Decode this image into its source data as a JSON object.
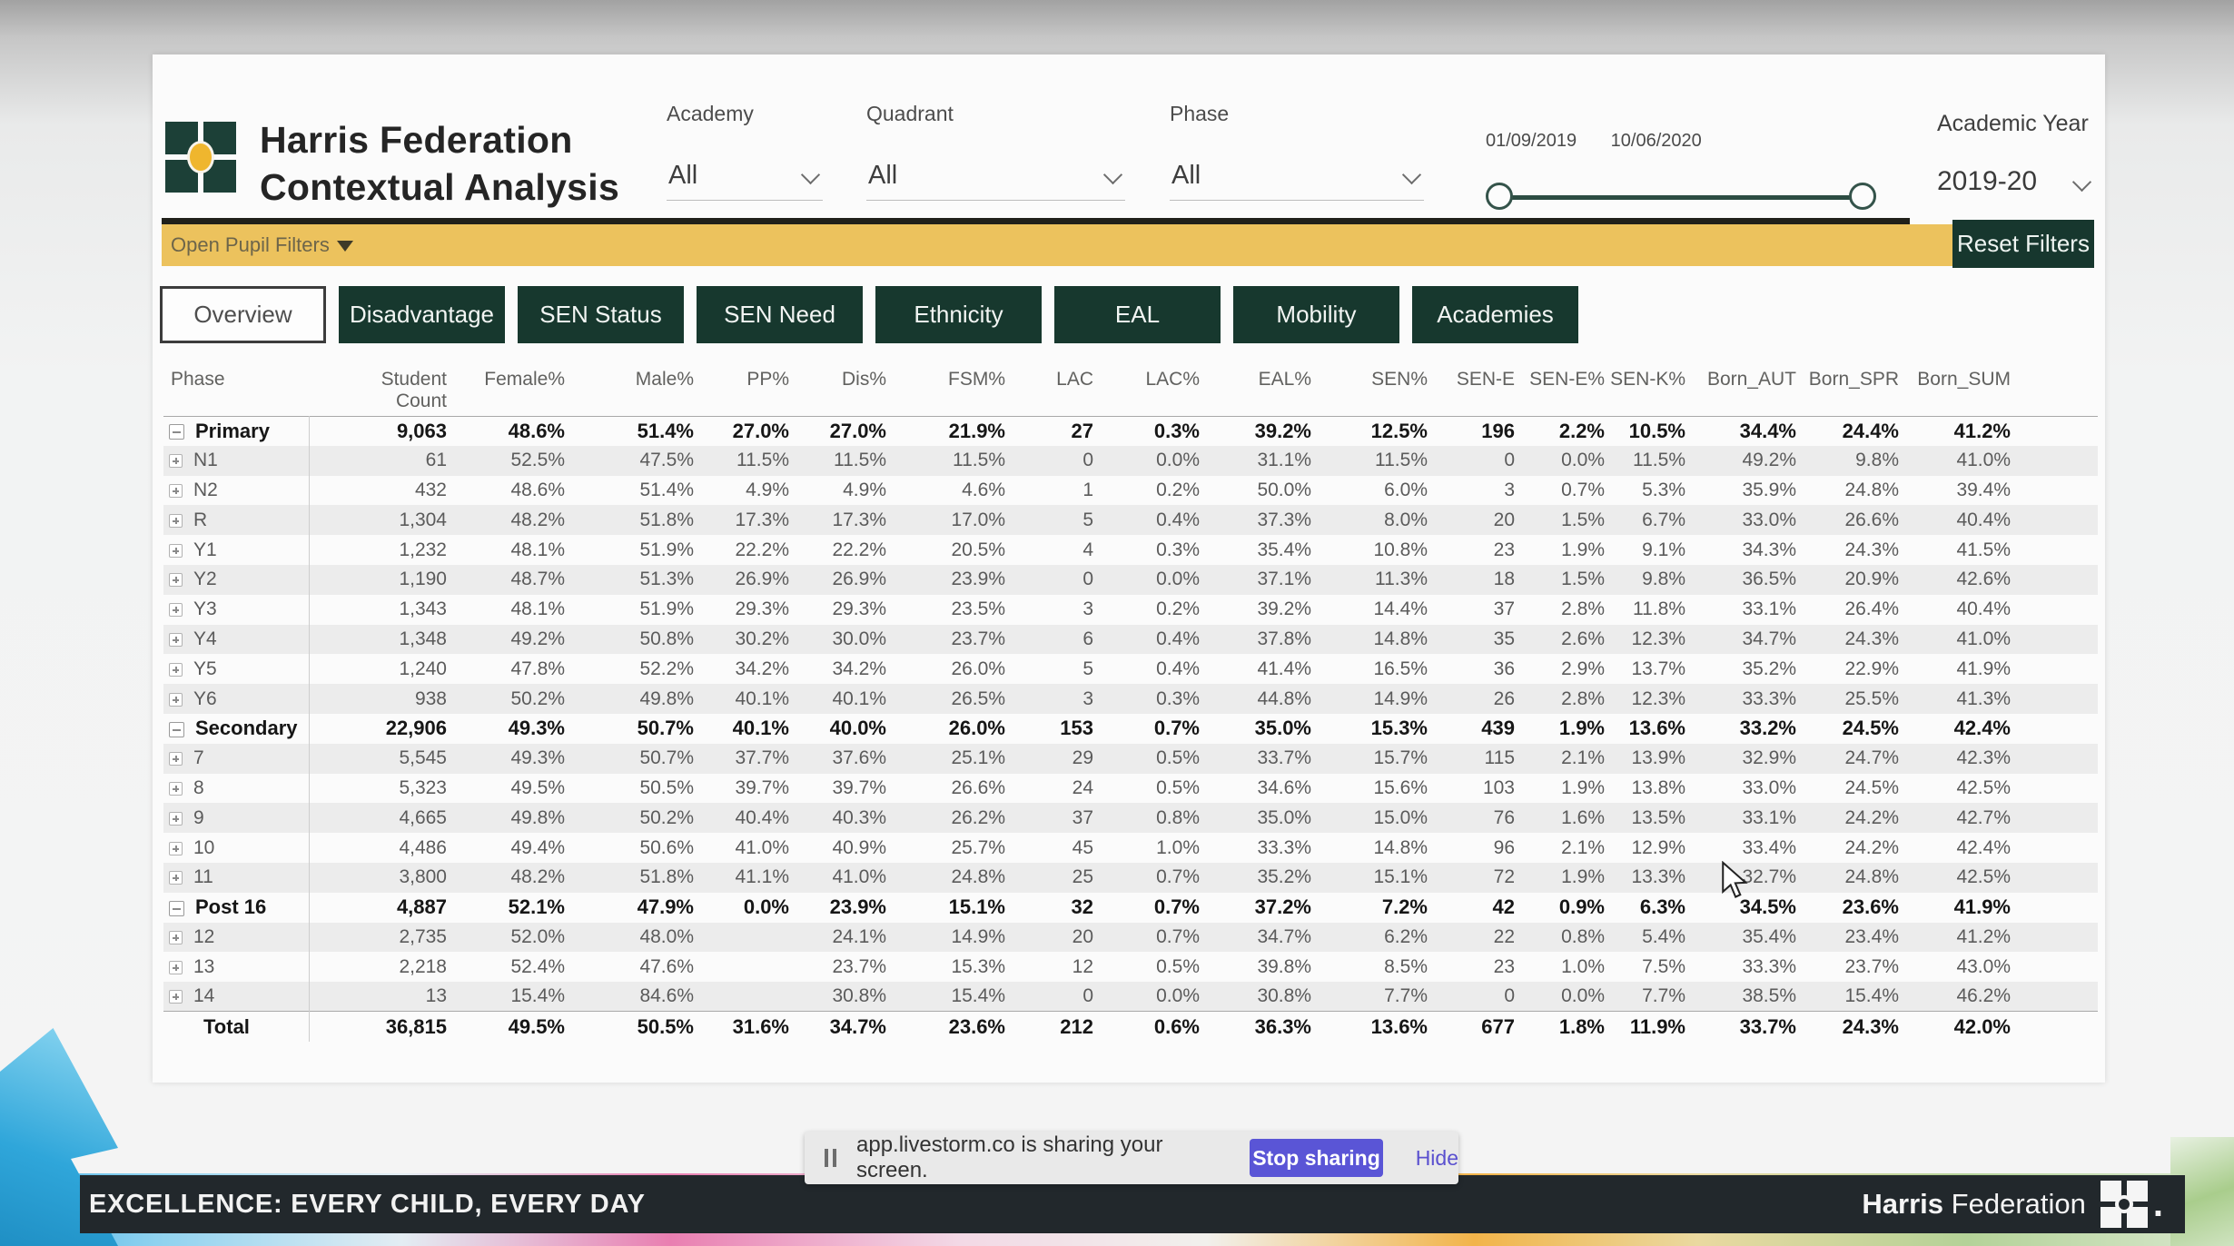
{
  "header": {
    "title_line1": "Harris Federation",
    "title_line2": "Contextual Analysis",
    "filters": [
      {
        "label": "Academy",
        "value": "All"
      },
      {
        "label": "Quadrant",
        "value": "All"
      },
      {
        "label": "Phase",
        "value": "All"
      }
    ],
    "date_slider": {
      "start_date": "01/09/2019",
      "end_date": "10/06/2020"
    },
    "academic_year": {
      "label": "Academic Year",
      "value": "2019-20"
    }
  },
  "filter_bar": {
    "open_pupil_filters_label": "Open Pupil Filters",
    "reset_filters_label": "Reset Filters"
  },
  "tabs": [
    {
      "label": "Overview",
      "active": true
    },
    {
      "label": "Disadvantage",
      "active": false
    },
    {
      "label": "SEN Status",
      "active": false
    },
    {
      "label": "SEN Need",
      "active": false
    },
    {
      "label": "Ethnicity",
      "active": false
    },
    {
      "label": "EAL",
      "active": false
    },
    {
      "label": "Mobility",
      "active": false
    },
    {
      "label": "Academies",
      "active": false
    }
  ],
  "table": {
    "columns": [
      "Phase",
      "Student Count",
      "Female%",
      "Male%",
      "PP%",
      "Dis%",
      "FSM%",
      "LAC",
      "LAC%",
      "EAL%",
      "SEN%",
      "SEN-E",
      "SEN-E%",
      "SEN-K%",
      "Born_AUT",
      "Born_SPR",
      "Born_SUM"
    ],
    "rows": [
      {
        "phase": "Primary",
        "icon": "minus",
        "bold": true,
        "values": [
          "9,063",
          "48.6%",
          "51.4%",
          "27.0%",
          "27.0%",
          "21.9%",
          "27",
          "0.3%",
          "39.2%",
          "12.5%",
          "196",
          "2.2%",
          "10.5%",
          "34.4%",
          "24.4%",
          "41.2%"
        ]
      },
      {
        "phase": "N1",
        "icon": "plus",
        "bold": false,
        "values": [
          "61",
          "52.5%",
          "47.5%",
          "11.5%",
          "11.5%",
          "11.5%",
          "0",
          "0.0%",
          "31.1%",
          "11.5%",
          "0",
          "0.0%",
          "11.5%",
          "49.2%",
          "9.8%",
          "41.0%"
        ]
      },
      {
        "phase": "N2",
        "icon": "plus",
        "bold": false,
        "values": [
          "432",
          "48.6%",
          "51.4%",
          "4.9%",
          "4.9%",
          "4.6%",
          "1",
          "0.2%",
          "50.0%",
          "6.0%",
          "3",
          "0.7%",
          "5.3%",
          "35.9%",
          "24.8%",
          "39.4%"
        ]
      },
      {
        "phase": "R",
        "icon": "plus",
        "bold": false,
        "values": [
          "1,304",
          "48.2%",
          "51.8%",
          "17.3%",
          "17.3%",
          "17.0%",
          "5",
          "0.4%",
          "37.3%",
          "8.0%",
          "20",
          "1.5%",
          "6.7%",
          "33.0%",
          "26.6%",
          "40.4%"
        ]
      },
      {
        "phase": "Y1",
        "icon": "plus",
        "bold": false,
        "values": [
          "1,232",
          "48.1%",
          "51.9%",
          "22.2%",
          "22.2%",
          "20.5%",
          "4",
          "0.3%",
          "35.4%",
          "10.8%",
          "23",
          "1.9%",
          "9.1%",
          "34.3%",
          "24.3%",
          "41.5%"
        ]
      },
      {
        "phase": "Y2",
        "icon": "plus",
        "bold": false,
        "values": [
          "1,190",
          "48.7%",
          "51.3%",
          "26.9%",
          "26.9%",
          "23.9%",
          "0",
          "0.0%",
          "37.1%",
          "11.3%",
          "18",
          "1.5%",
          "9.8%",
          "36.5%",
          "20.9%",
          "42.6%"
        ]
      },
      {
        "phase": "Y3",
        "icon": "plus",
        "bold": false,
        "values": [
          "1,343",
          "48.1%",
          "51.9%",
          "29.3%",
          "29.3%",
          "23.5%",
          "3",
          "0.2%",
          "39.2%",
          "14.4%",
          "37",
          "2.8%",
          "11.8%",
          "33.1%",
          "26.4%",
          "40.4%"
        ]
      },
      {
        "phase": "Y4",
        "icon": "plus",
        "bold": false,
        "values": [
          "1,348",
          "49.2%",
          "50.8%",
          "30.2%",
          "30.0%",
          "23.7%",
          "6",
          "0.4%",
          "37.8%",
          "14.8%",
          "35",
          "2.6%",
          "12.3%",
          "34.7%",
          "24.3%",
          "41.0%"
        ]
      },
      {
        "phase": "Y5",
        "icon": "plus",
        "bold": false,
        "values": [
          "1,240",
          "47.8%",
          "52.2%",
          "34.2%",
          "34.2%",
          "26.0%",
          "5",
          "0.4%",
          "41.4%",
          "16.5%",
          "36",
          "2.9%",
          "13.7%",
          "35.2%",
          "22.9%",
          "41.9%"
        ]
      },
      {
        "phase": "Y6",
        "icon": "plus",
        "bold": false,
        "values": [
          "938",
          "50.2%",
          "49.8%",
          "40.1%",
          "40.1%",
          "26.5%",
          "3",
          "0.3%",
          "44.8%",
          "14.9%",
          "26",
          "2.8%",
          "12.3%",
          "33.3%",
          "25.5%",
          "41.3%"
        ]
      },
      {
        "phase": "Secondary",
        "icon": "minus",
        "bold": true,
        "values": [
          "22,906",
          "49.3%",
          "50.7%",
          "40.1%",
          "40.0%",
          "26.0%",
          "153",
          "0.7%",
          "35.0%",
          "15.3%",
          "439",
          "1.9%",
          "13.6%",
          "33.2%",
          "24.5%",
          "42.4%"
        ]
      },
      {
        "phase": "7",
        "icon": "plus",
        "bold": false,
        "values": [
          "5,545",
          "49.3%",
          "50.7%",
          "37.7%",
          "37.6%",
          "25.1%",
          "29",
          "0.5%",
          "33.7%",
          "15.7%",
          "115",
          "2.1%",
          "13.9%",
          "32.9%",
          "24.7%",
          "42.3%"
        ]
      },
      {
        "phase": "8",
        "icon": "plus",
        "bold": false,
        "values": [
          "5,323",
          "49.5%",
          "50.5%",
          "39.7%",
          "39.7%",
          "26.6%",
          "24",
          "0.5%",
          "34.6%",
          "15.6%",
          "103",
          "1.9%",
          "13.8%",
          "33.0%",
          "24.5%",
          "42.5%"
        ]
      },
      {
        "phase": "9",
        "icon": "plus",
        "bold": false,
        "values": [
          "4,665",
          "49.8%",
          "50.2%",
          "40.4%",
          "40.3%",
          "26.2%",
          "37",
          "0.8%",
          "35.0%",
          "15.0%",
          "76",
          "1.6%",
          "13.5%",
          "33.1%",
          "24.2%",
          "42.7%"
        ]
      },
      {
        "phase": "10",
        "icon": "plus",
        "bold": false,
        "values": [
          "4,486",
          "49.4%",
          "50.6%",
          "41.0%",
          "40.9%",
          "25.7%",
          "45",
          "1.0%",
          "33.3%",
          "14.8%",
          "96",
          "2.1%",
          "12.9%",
          "33.4%",
          "24.2%",
          "42.4%"
        ]
      },
      {
        "phase": "11",
        "icon": "plus",
        "bold": false,
        "values": [
          "3,800",
          "48.2%",
          "51.8%",
          "41.1%",
          "41.0%",
          "24.8%",
          "25",
          "0.7%",
          "35.2%",
          "15.1%",
          "72",
          "1.9%",
          "13.3%",
          "32.7%",
          "24.8%",
          "42.5%"
        ]
      },
      {
        "phase": "Post 16",
        "icon": "minus",
        "bold": true,
        "values": [
          "4,887",
          "52.1%",
          "47.9%",
          "0.0%",
          "23.9%",
          "15.1%",
          "32",
          "0.7%",
          "37.2%",
          "7.2%",
          "42",
          "0.9%",
          "6.3%",
          "34.5%",
          "23.6%",
          "41.9%"
        ]
      },
      {
        "phase": "12",
        "icon": "plus",
        "bold": false,
        "values": [
          "2,735",
          "52.0%",
          "48.0%",
          "",
          "24.1%",
          "14.9%",
          "20",
          "0.7%",
          "34.7%",
          "6.2%",
          "22",
          "0.8%",
          "5.4%",
          "35.4%",
          "23.4%",
          "41.2%"
        ]
      },
      {
        "phase": "13",
        "icon": "plus",
        "bold": false,
        "values": [
          "2,218",
          "52.4%",
          "47.6%",
          "",
          "23.7%",
          "15.3%",
          "12",
          "0.5%",
          "39.8%",
          "8.5%",
          "23",
          "1.0%",
          "7.5%",
          "33.3%",
          "23.7%",
          "43.0%"
        ]
      },
      {
        "phase": "14",
        "icon": "plus",
        "bold": false,
        "values": [
          "13",
          "15.4%",
          "84.6%",
          "",
          "30.8%",
          "15.4%",
          "0",
          "0.0%",
          "30.8%",
          "7.7%",
          "0",
          "0.0%",
          "7.7%",
          "38.5%",
          "15.4%",
          "46.2%"
        ]
      },
      {
        "phase": "Total",
        "icon": "none",
        "bold": true,
        "values": [
          "36,815",
          "49.5%",
          "50.5%",
          "31.6%",
          "34.7%",
          "23.6%",
          "212",
          "0.6%",
          "36.3%",
          "13.6%",
          "677",
          "1.8%",
          "11.9%",
          "33.7%",
          "24.3%",
          "42.0%"
        ]
      }
    ]
  },
  "share_bar": {
    "message": "app.livestorm.co is sharing your screen.",
    "stop_button_label": "Stop sharing",
    "hide_label": "Hide",
    "button_color": "#5a55d6"
  },
  "footer": {
    "motto": "EXCELLENCE: EVERY CHILD, EVERY DAY",
    "brand_bold": "Harris",
    "brand_regular": "Federation"
  },
  "colors": {
    "brand_dark_green": "#17382e",
    "filter_bar_yellow": "#ecc25d",
    "logo_gold": "#efb62e",
    "footer_dark": "#22282c"
  }
}
